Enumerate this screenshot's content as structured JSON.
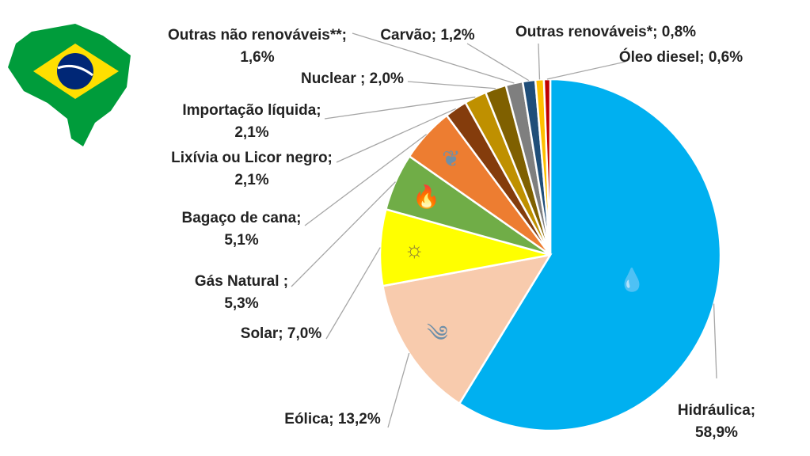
{
  "chart_data": {
    "type": "pie",
    "start_angle_deg": 0,
    "direction": "clockwise",
    "slices": [
      {
        "name": "Hidráulica;",
        "value": 58.9,
        "label": "58,9%",
        "color": "#00B0F0",
        "icon": "water-drop-icon"
      },
      {
        "name": "Eólica;",
        "value": 13.2,
        "label": "13,2%",
        "color": "#F8CBAD",
        "icon": "wind-icon"
      },
      {
        "name": "Solar;",
        "value": 7.0,
        "label": "7,0%",
        "color": "#FFFF00",
        "icon": "sun-icon"
      },
      {
        "name": "Gás Natural ;",
        "value": 5.3,
        "label": "5,3%",
        "color": "#70AD47",
        "icon": "flame-icon"
      },
      {
        "name": "Bagaço de cana;",
        "value": 5.1,
        "label": "5,1%",
        "color": "#ED7D31",
        "icon": "sugarcane-icon"
      },
      {
        "name": "Lixívia ou Licor negro;",
        "value": 2.1,
        "label": "2,1%",
        "color": "#843C0C"
      },
      {
        "name": "Importação líquida;",
        "value": 2.1,
        "label": "2,1%",
        "color": "#BF9000"
      },
      {
        "name": "Nuclear ;",
        "value": 2.0,
        "label": "2,0%",
        "color": "#7F6000"
      },
      {
        "name": "Outras não renováveis**;",
        "value": 1.6,
        "label": "1,6%",
        "color": "#7F7F7F"
      },
      {
        "name": "Carvão;",
        "value": 1.2,
        "label": "1,2%",
        "color": "#1F4E79"
      },
      {
        "name": "Outras renováveis*;",
        "value": 0.8,
        "label": "0,8%",
        "color": "#FFC000"
      },
      {
        "name": "Óleo diesel;",
        "value": 0.6,
        "label": "0,6%",
        "color": "#C00000"
      }
    ],
    "legend": "none",
    "logo": "brazil-map-flag-icon"
  }
}
